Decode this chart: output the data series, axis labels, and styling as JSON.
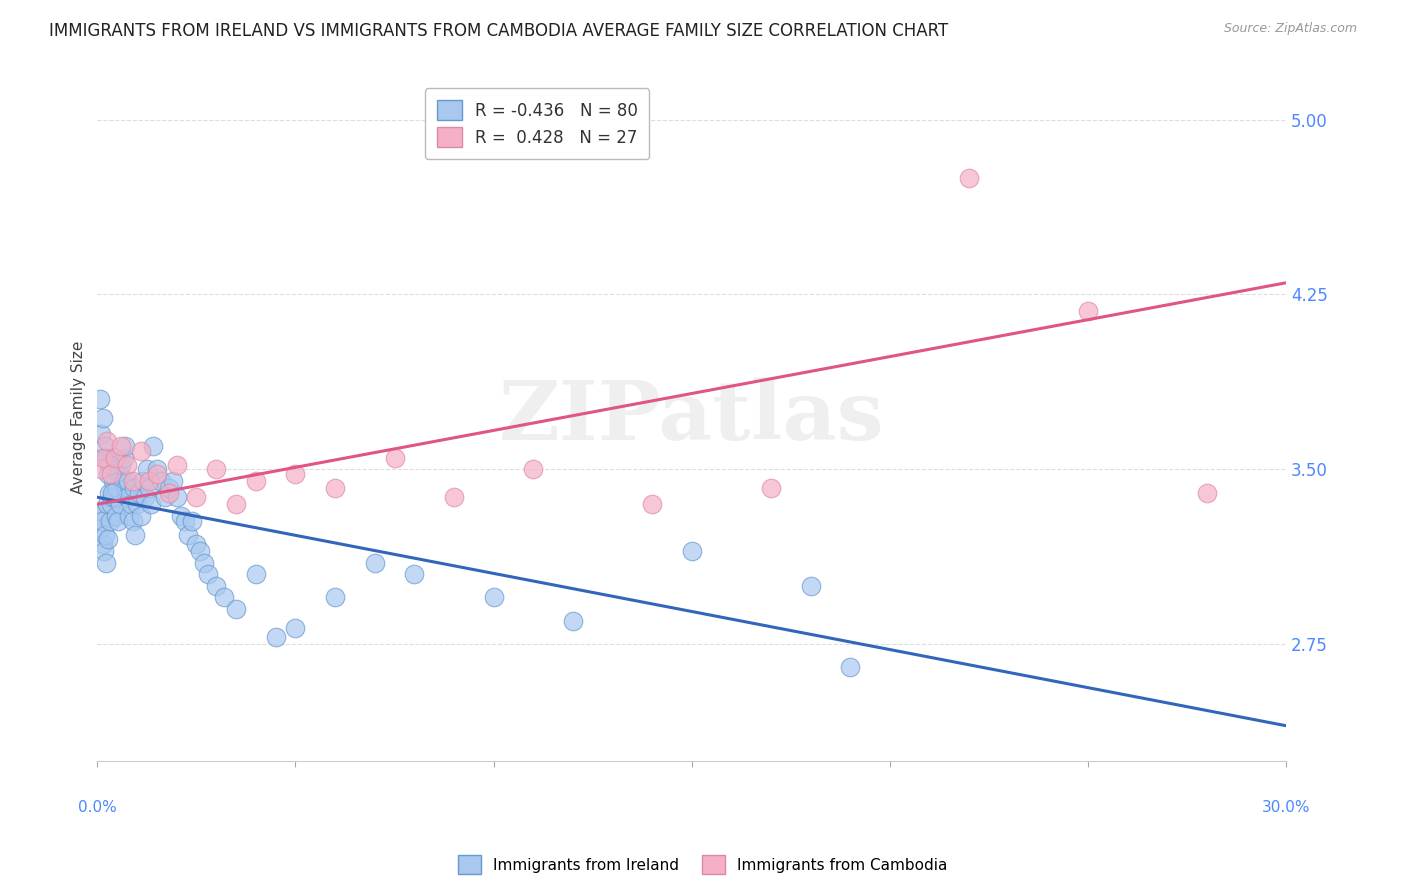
{
  "title": "IMMIGRANTS FROM IRELAND VS IMMIGRANTS FROM CAMBODIA AVERAGE FAMILY SIZE CORRELATION CHART",
  "source": "Source: ZipAtlas.com",
  "ylabel": "Average Family Size",
  "y_ticks": [
    2.75,
    3.5,
    4.25,
    5.0
  ],
  "x_min": 0.0,
  "x_max": 30.0,
  "y_min": 2.25,
  "y_max": 5.2,
  "ireland_color": "#a8c8f0",
  "ireland_edge": "#6699cc",
  "ireland_line_color": "#3366bb",
  "cambodia_color": "#f5b0c5",
  "cambodia_edge": "#dd88aa",
  "cambodia_line_color": "#e05585",
  "ireland_R": -0.436,
  "ireland_N": 80,
  "cambodia_R": 0.428,
  "cambodia_N": 27,
  "ireland_x": [
    0.05,
    0.08,
    0.1,
    0.12,
    0.15,
    0.18,
    0.2,
    0.22,
    0.25,
    0.28,
    0.3,
    0.32,
    0.35,
    0.38,
    0.4,
    0.42,
    0.45,
    0.48,
    0.5,
    0.52,
    0.55,
    0.58,
    0.6,
    0.65,
    0.68,
    0.7,
    0.72,
    0.75,
    0.78,
    0.8,
    0.85,
    0.9,
    0.92,
    0.95,
    1.0,
    1.05,
    1.1,
    1.15,
    1.2,
    1.25,
    1.3,
    1.35,
    1.4,
    1.5,
    1.6,
    1.7,
    1.8,
    1.9,
    2.0,
    2.1,
    2.2,
    2.3,
    2.4,
    2.5,
    2.6,
    2.7,
    2.8,
    3.0,
    3.2,
    3.5,
    4.0,
    4.5,
    5.0,
    6.0,
    7.0,
    8.0,
    10.0,
    12.0,
    15.0,
    18.0,
    0.06,
    0.09,
    0.13,
    0.16,
    0.19,
    0.23,
    0.27,
    0.31,
    0.36,
    19.0
  ],
  "ireland_y": [
    3.3,
    3.25,
    3.32,
    3.28,
    3.18,
    3.15,
    3.22,
    3.1,
    3.35,
    3.2,
    3.4,
    3.28,
    3.35,
    3.38,
    3.45,
    3.5,
    3.38,
    3.3,
    3.42,
    3.28,
    3.48,
    3.35,
    3.52,
    3.45,
    3.55,
    3.6,
    3.42,
    3.38,
    3.45,
    3.3,
    3.35,
    3.28,
    3.42,
    3.22,
    3.35,
    3.4,
    3.3,
    3.45,
    3.38,
    3.5,
    3.42,
    3.35,
    3.6,
    3.5,
    3.45,
    3.38,
    3.42,
    3.45,
    3.38,
    3.3,
    3.28,
    3.22,
    3.28,
    3.18,
    3.15,
    3.1,
    3.05,
    3.0,
    2.95,
    2.9,
    3.05,
    2.78,
    2.82,
    2.95,
    3.1,
    3.05,
    2.95,
    2.85,
    3.15,
    3.0,
    3.8,
    3.65,
    3.72,
    3.55,
    3.6,
    3.55,
    3.48,
    3.52,
    3.4,
    2.65
  ],
  "cambodia_x": [
    0.08,
    0.15,
    0.25,
    0.35,
    0.45,
    0.6,
    0.75,
    0.9,
    1.1,
    1.3,
    1.5,
    1.8,
    2.0,
    2.5,
    3.0,
    3.5,
    4.0,
    5.0,
    6.0,
    7.5,
    9.0,
    11.0,
    14.0,
    17.0,
    22.0,
    25.0,
    28.0
  ],
  "cambodia_y": [
    3.5,
    3.55,
    3.62,
    3.48,
    3.55,
    3.6,
    3.52,
    3.45,
    3.58,
    3.45,
    3.48,
    3.4,
    3.52,
    3.38,
    3.5,
    3.35,
    3.45,
    3.48,
    3.42,
    3.55,
    3.38,
    3.5,
    3.35,
    3.42,
    4.75,
    4.18,
    3.4
  ],
  "ireland_line": {
    "x0": 0.0,
    "x1": 30.0,
    "y0": 3.38,
    "y1": 2.4
  },
  "cambodia_line": {
    "x0": 0.0,
    "x1": 30.0,
    "y0": 3.35,
    "y1": 4.3
  },
  "watermark_text": "ZIPatlas",
  "background_color": "#ffffff",
  "grid_color": "#dddddd",
  "tick_color": "#4d88ff",
  "title_fontsize": 12,
  "axis_label_fontsize": 11,
  "tick_fontsize": 11,
  "scatter_size": 180,
  "scatter_alpha": 0.7
}
